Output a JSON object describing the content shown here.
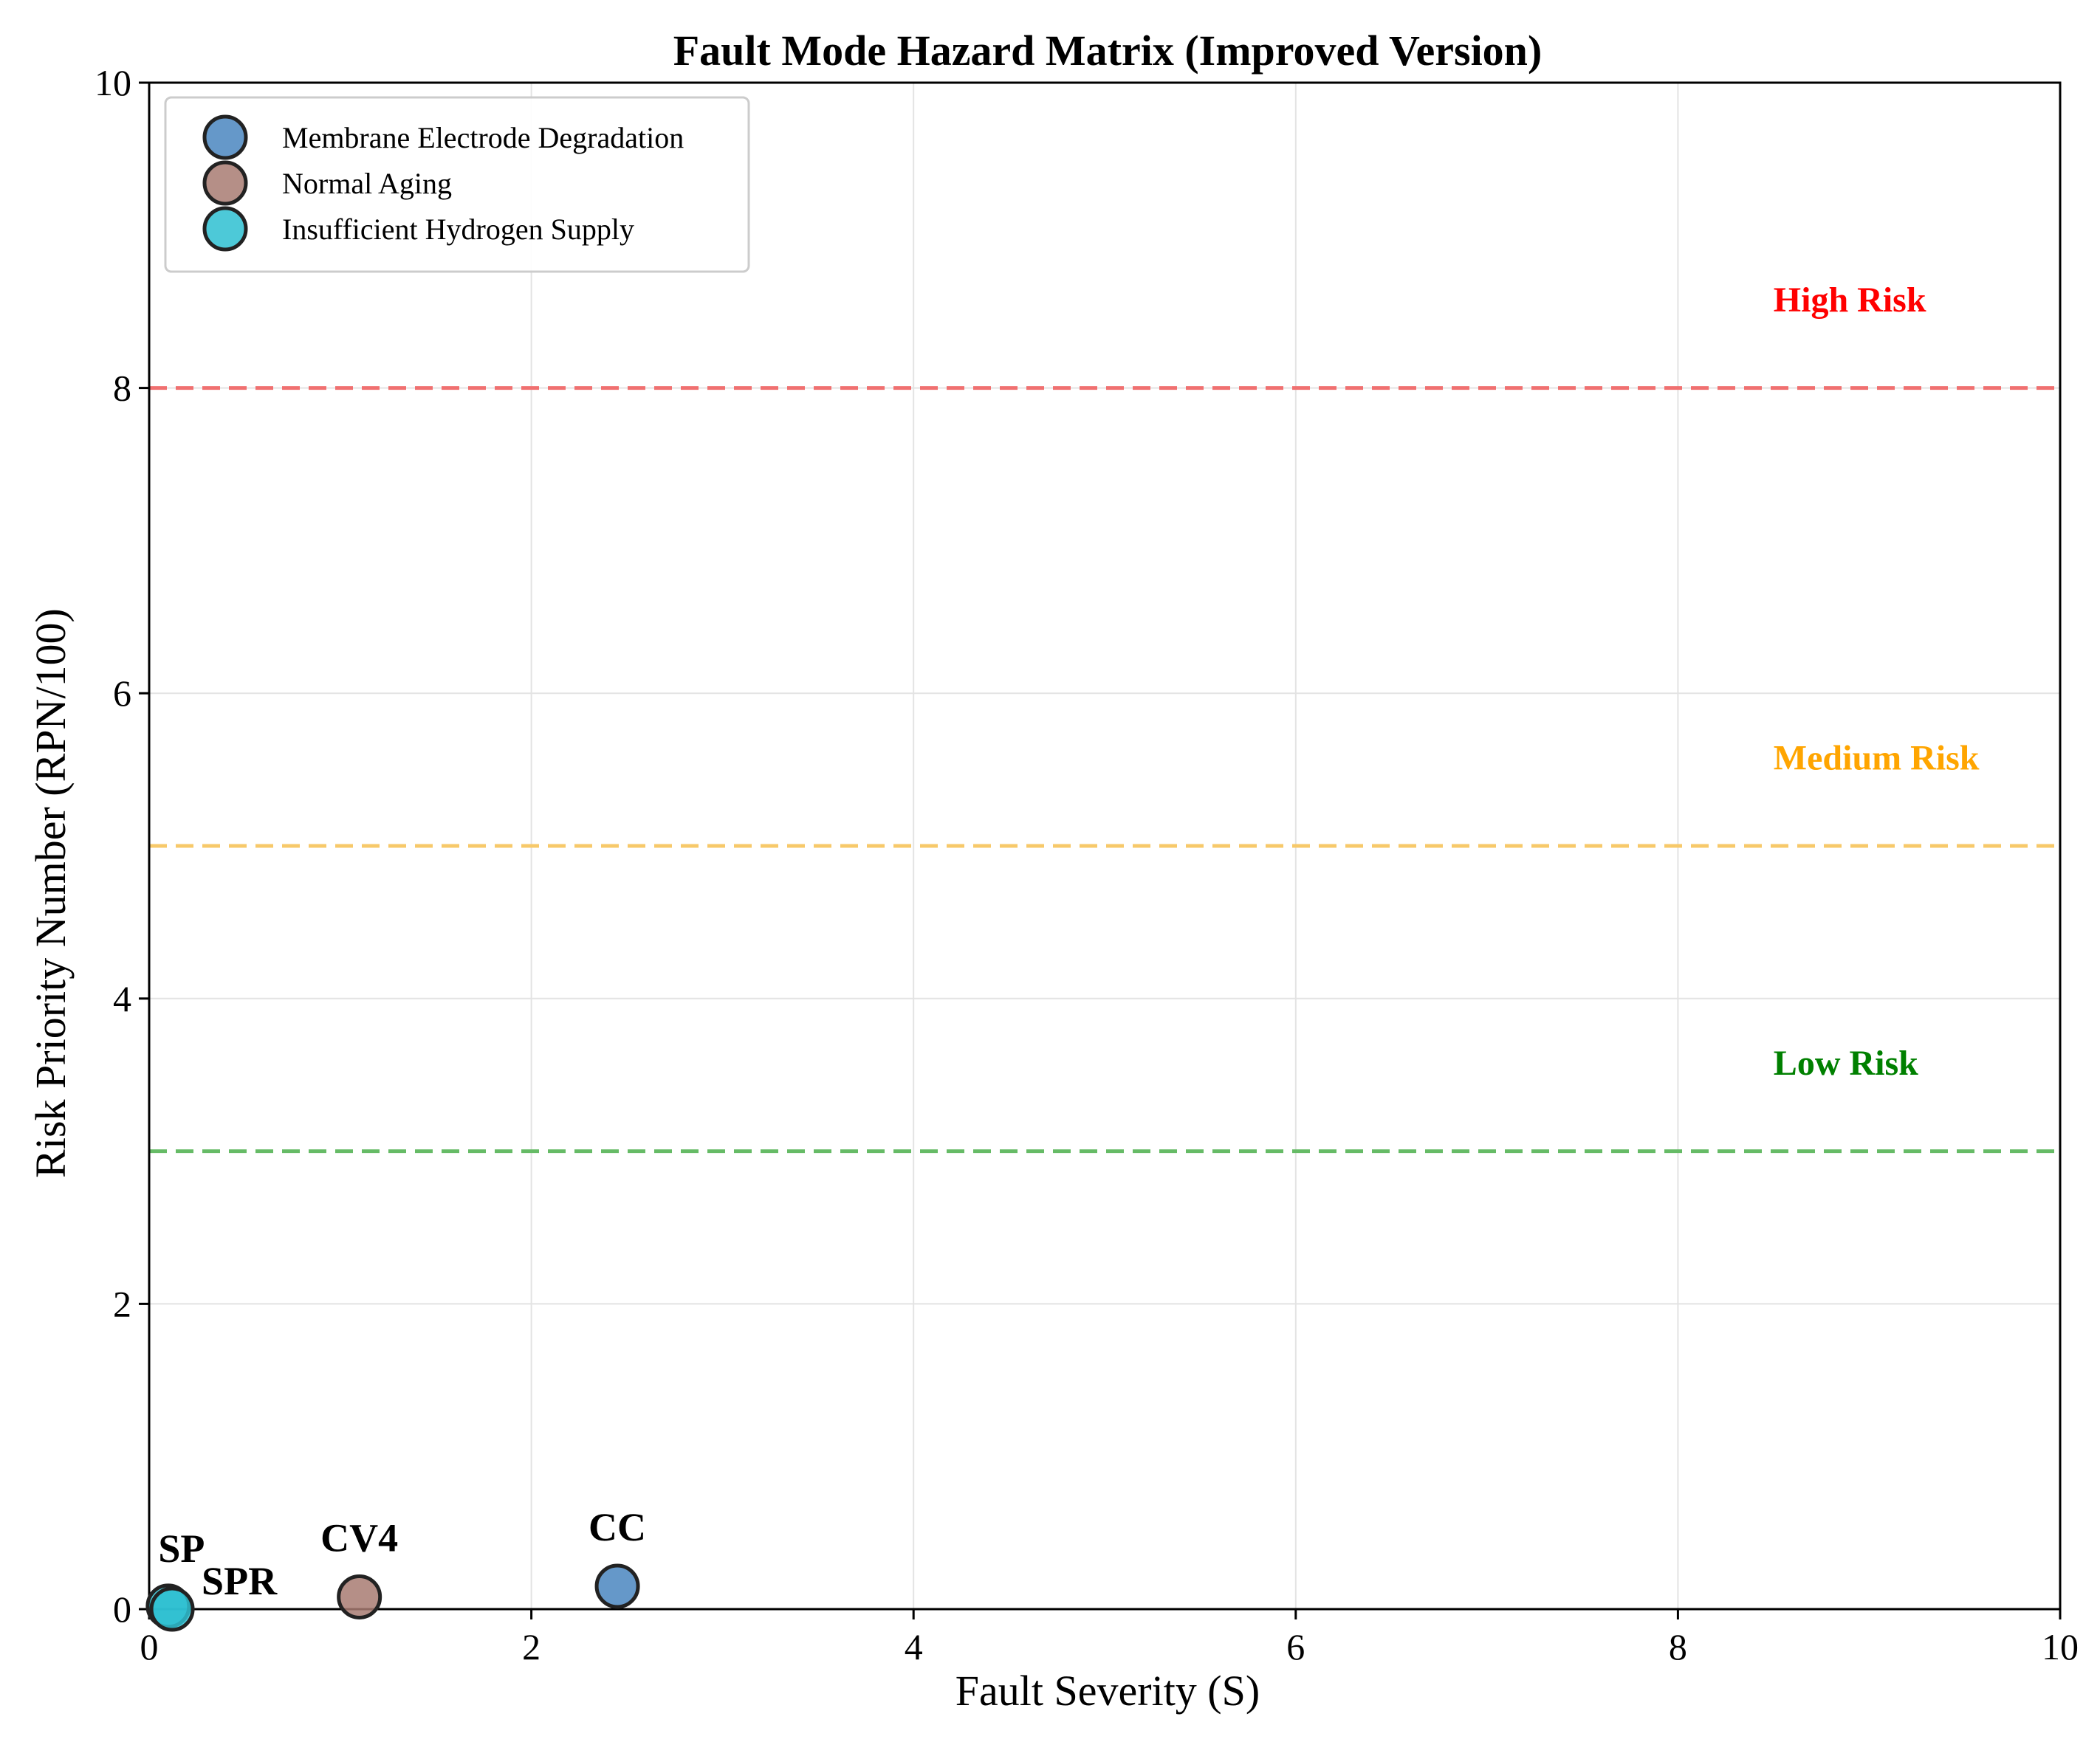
{
  "chart_data": {
    "type": "scatter",
    "title": "Fault Mode Hazard Matrix (Improved Version)",
    "xlabel": "Fault Severity (S)",
    "ylabel": "Risk Priority Number (RPN/100)",
    "xlim": [
      0,
      10
    ],
    "ylim": [
      0,
      10
    ],
    "xticks": [
      0,
      2,
      4,
      6,
      8,
      10
    ],
    "yticks": [
      0,
      2,
      4,
      6,
      8,
      10
    ],
    "grid": true,
    "legend_position": "upper-left",
    "series": [
      {
        "name": "Membrane Electrode Degradation",
        "color": "#4a86c0",
        "points": [
          {
            "label": "CC",
            "x": 2.45,
            "y": 0.15
          }
        ]
      },
      {
        "name": "Normal Aging",
        "color": "#a87b72",
        "points": [
          {
            "label": "CV4",
            "x": 1.1,
            "y": 0.08
          }
        ]
      },
      {
        "name": "Insufficient Hydrogen Supply",
        "color": "#2ebfd1",
        "points": [
          {
            "label": "SP",
            "x": 0.1,
            "y": 0.02
          },
          {
            "label": "SPR",
            "x": 0.12,
            "y": 0.0
          }
        ]
      }
    ],
    "thresholds": [
      {
        "label": "High Risk",
        "y": 8,
        "color": "#ff0000",
        "line_color": "#f07070"
      },
      {
        "label": "Medium Risk",
        "y": 5,
        "color": "#ffa500",
        "line_color": "#f7c96a"
      },
      {
        "label": "Low Risk",
        "y": 3,
        "color": "#008000",
        "line_color": "#66bb66"
      }
    ]
  }
}
